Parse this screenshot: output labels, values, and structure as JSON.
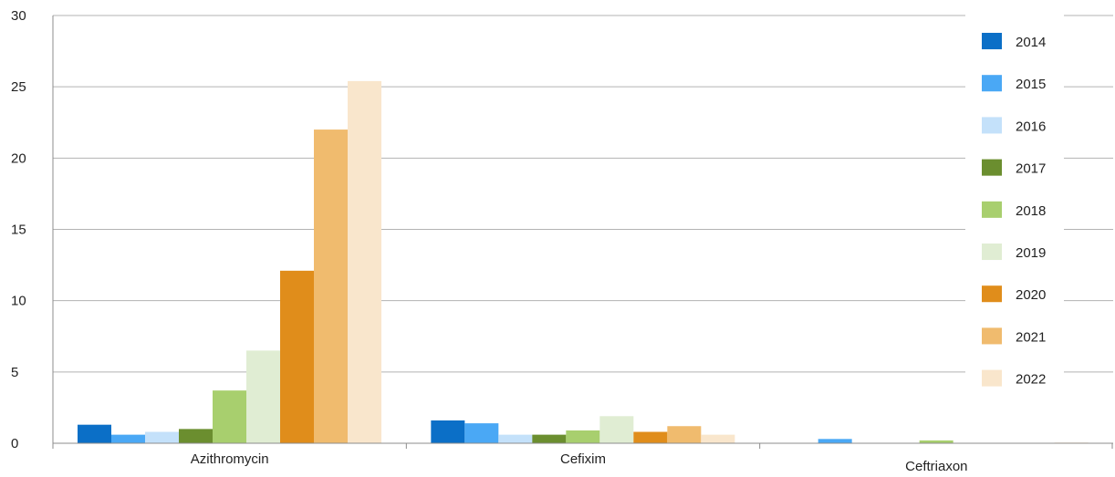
{
  "chart_data": {
    "type": "bar",
    "title": "",
    "xlabel": "",
    "ylabel": "",
    "ylim": [
      0,
      30
    ],
    "yticks": [
      0,
      5,
      10,
      15,
      20,
      25,
      30
    ],
    "grid": true,
    "legend_position": "right",
    "categories": [
      "Azithromycin",
      "Cefixim",
      "Ceftriaxon"
    ],
    "series": [
      {
        "name": "2014",
        "color": "#0b6fc7",
        "values": [
          1.3,
          1.6,
          0
        ]
      },
      {
        "name": "2015",
        "color": "#4aa8f5",
        "values": [
          0.6,
          1.4,
          0.3
        ]
      },
      {
        "name": "2016",
        "color": "#c4e1fa",
        "values": [
          0.8,
          0.6,
          0
        ]
      },
      {
        "name": "2017",
        "color": "#6b8e2f",
        "values": [
          1.0,
          0.6,
          0
        ]
      },
      {
        "name": "2018",
        "color": "#a8cf6e",
        "values": [
          3.7,
          0.9,
          0.2
        ]
      },
      {
        "name": "2019",
        "color": "#e0edd3",
        "values": [
          6.5,
          1.9,
          0
        ]
      },
      {
        "name": "2020",
        "color": "#e08d1b",
        "values": [
          12.1,
          0.8,
          0
        ]
      },
      {
        "name": "2021",
        "color": "#f0bb6e",
        "values": [
          22.0,
          1.2,
          0
        ]
      },
      {
        "name": "2022",
        "color": "#f9e6cc",
        "values": [
          25.4,
          0.6,
          0.05
        ]
      }
    ]
  }
}
